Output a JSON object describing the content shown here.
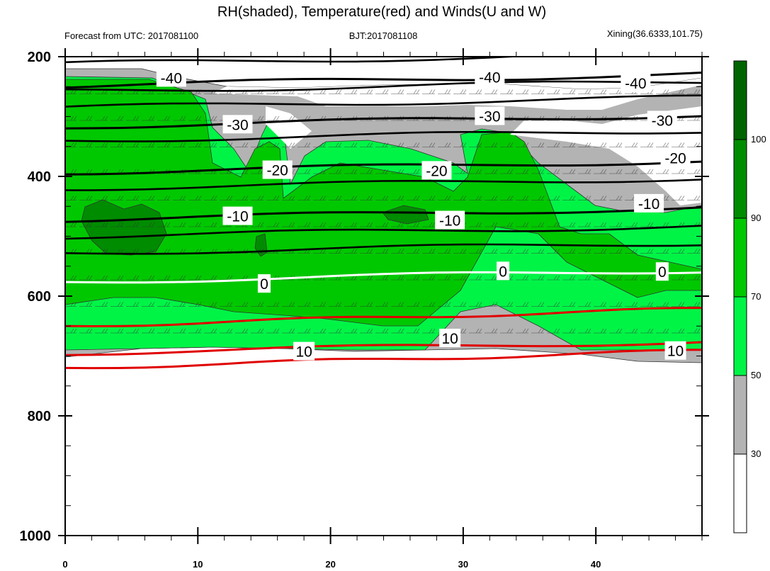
{
  "chart_data": {
    "type": "contour",
    "title": "RH(shaded), Temperature(red) and Winds(U and W)",
    "subtitle_left": "Forecast from UTC: 2017081100",
    "subtitle_center": "BJT:2017081108",
    "subtitle_right": "Xining(36.6333,101.75)",
    "xlabel": "",
    "ylabel": "",
    "xlim": [
      0,
      48
    ],
    "x_ticks": [
      0,
      10,
      20,
      30,
      40
    ],
    "y_axis": {
      "range": [
        200,
        1000
      ],
      "reversed": true,
      "ticks": [
        200,
        400,
        600,
        800,
        1000
      ]
    },
    "colorbar": {
      "levels": [
        30,
        50,
        70,
        90,
        100
      ],
      "colors": [
        "#ffffff",
        "#b3b3b3",
        "#00f446",
        "#00c800",
        "#008c00",
        "#006400"
      ],
      "labels": [
        "30",
        "50",
        "70",
        "90",
        "100"
      ]
    },
    "temperature_contours": [
      {
        "value": -40,
        "label": "-40",
        "color": "#000000"
      },
      {
        "value": -30,
        "label": "-30",
        "color": "#000000"
      },
      {
        "value": -20,
        "label": "-20",
        "color": "#000000"
      },
      {
        "value": -10,
        "label": "-10",
        "color": "#000000"
      },
      {
        "value": 0,
        "label": "0",
        "color": "#ffffff"
      },
      {
        "value": 10,
        "label": "10",
        "color": "#e00000"
      }
    ],
    "contour_label_texts": [
      {
        "text": "-40",
        "x": 8,
        "p": 236
      },
      {
        "text": "-40",
        "x": 32,
        "p": 235
      },
      {
        "text": "-40",
        "x": 43,
        "p": 245
      },
      {
        "text": "-30",
        "x": 13,
        "p": 314
      },
      {
        "text": "-30",
        "x": 32,
        "p": 300
      },
      {
        "text": "-30",
        "x": 45,
        "p": 307
      },
      {
        "text": "-20",
        "x": 16,
        "p": 390
      },
      {
        "text": "-20",
        "x": 28,
        "p": 391
      },
      {
        "text": "-20",
        "x": 46,
        "p": 370
      },
      {
        "text": "-10",
        "x": 13,
        "p": 467
      },
      {
        "text": "-10",
        "x": 29,
        "p": 474
      },
      {
        "text": "-10",
        "x": 44,
        "p": 446
      },
      {
        "text": "0",
        "x": 15,
        "p": 580
      },
      {
        "text": "0",
        "x": 33,
        "p": 559
      },
      {
        "text": "0",
        "x": 45,
        "p": 560
      },
      {
        "text": "10",
        "x": 18,
        "p": 693
      },
      {
        "text": "10",
        "x": 29,
        "p": 671
      },
      {
        "text": "10",
        "x": 46,
        "p": 692
      }
    ]
  }
}
